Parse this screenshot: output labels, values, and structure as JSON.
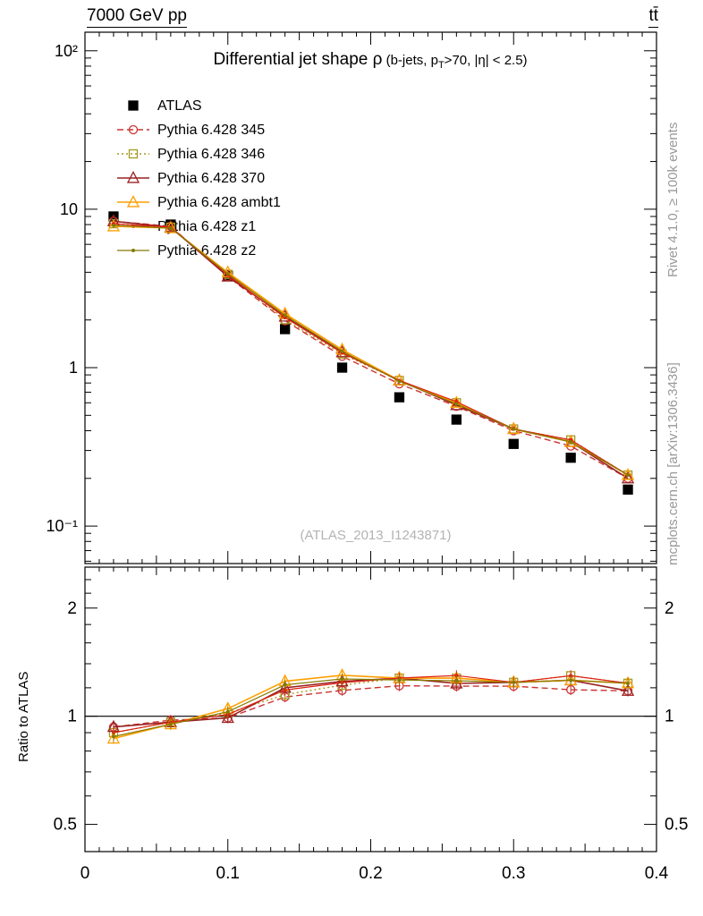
{
  "header": {
    "left": "7000 GeV pp",
    "right": "tt̄"
  },
  "title": {
    "main": "Differential jet shape ρ",
    "cuts_pre": " (b-jets, p",
    "cuts_sub": "T",
    "cuts_post": ">70, |η| < 2.5)"
  },
  "watermark": "(ATLAS_2013_I1243871)",
  "ratio_axis_label": "Ratio to ATLAS",
  "side_notes": {
    "top_right": "Rivet 4.1.0, ≥ 100k events",
    "bottom_right": "mcplots.cern.ch [arXiv:1306.3436]"
  },
  "chart_data": {
    "type": "line",
    "title": "Differential jet shape ρ (b-jets, pT>70, |η| < 2.5)",
    "xlabel": "",
    "ylabel": "",
    "ratio_ylabel": "Ratio to ATLAS",
    "x": [
      0.02,
      0.06,
      0.1,
      0.14,
      0.18,
      0.22,
      0.26,
      0.3,
      0.34,
      0.38
    ],
    "xlim": [
      0,
      0.4
    ],
    "main_ylim": [
      0.058,
      131
    ],
    "ratio_ylim": [
      0.42,
      2.6
    ],
    "x_ticks": [
      {
        "v": 0,
        "label": "0"
      },
      {
        "v": 0.1,
        "label": "0.1"
      },
      {
        "v": 0.2,
        "label": "0.2"
      },
      {
        "v": 0.3,
        "label": "0.3"
      },
      {
        "v": 0.4,
        "label": "0.4"
      }
    ],
    "main_y_ticks": [
      {
        "v": 100,
        "label": "10²"
      },
      {
        "v": 10,
        "label": "10"
      },
      {
        "v": 1,
        "label": "1"
      },
      {
        "v": 0.1,
        "label": "10⁻¹"
      }
    ],
    "ratio_y_ticks": [
      {
        "v": 2,
        "label": "2"
      },
      {
        "v": 1,
        "label": "1"
      },
      {
        "v": 0.5,
        "label": "0.5"
      }
    ],
    "ratio_minor_ticks": [
      0.6,
      0.7,
      0.8,
      0.9,
      1.2,
      1.4,
      1.6,
      1.8,
      2.2,
      2.4
    ],
    "legend": {
      "x_line0": 131,
      "x_line1": 167,
      "x_text": 176,
      "y0": 118,
      "dy": 27
    },
    "series": [
      {
        "id": "atlas",
        "name": "ATLAS",
        "color": "#000000",
        "line": "none",
        "lw": 0,
        "marker": "square",
        "msize": 5,
        "filled": true,
        "values": [
          9.0,
          8.0,
          3.8,
          1.75,
          1.0,
          0.65,
          0.47,
          0.33,
          0.27,
          0.17
        ]
      },
      {
        "id": "py345",
        "name": "Pythia 6.428 345",
        "color": "#cc3333",
        "line": "dash",
        "lw": 1.4,
        "marker": "circle",
        "msize": 4.5,
        "filled": false,
        "values": [
          8.4,
          7.8,
          3.76,
          1.98,
          1.18,
          0.79,
          0.57,
          0.4,
          0.32,
          0.2
        ]
      },
      {
        "id": "py346",
        "name": "Pythia 6.428 346",
        "color": "#a6991f",
        "line": "dot",
        "lw": 1.4,
        "marker": "square",
        "msize": 4.5,
        "filled": false,
        "values": [
          8.1,
          7.7,
          3.88,
          2.01,
          1.22,
          0.83,
          0.6,
          0.41,
          0.35,
          0.21
        ]
      },
      {
        "id": "py370",
        "name": "Pythia 6.428 370",
        "color": "#992222",
        "line": "solid",
        "lw": 1.6,
        "marker": "triangle",
        "msize": 5.5,
        "filled": false,
        "values": [
          8.4,
          7.7,
          3.76,
          2.1,
          1.25,
          0.83,
          0.58,
          0.41,
          0.34,
          0.2
        ]
      },
      {
        "id": "pyambt1",
        "name": "Pythia 6.428 ambt1",
        "color": "#ff9f00",
        "line": "solid",
        "lw": 1.6,
        "marker": "triangle",
        "msize": 5.5,
        "filled": false,
        "values": [
          7.8,
          7.6,
          3.99,
          2.19,
          1.3,
          0.83,
          0.6,
          0.41,
          0.34,
          0.21
        ]
      },
      {
        "id": "pyz1",
        "name": "Pythia 6.428 z1",
        "color": "#dd2211",
        "line": "solid",
        "lw": 1.2,
        "marker": "dot",
        "msize": 2,
        "filled": true,
        "values": [
          8.1,
          7.7,
          3.84,
          2.07,
          1.24,
          0.83,
          0.61,
          0.41,
          0.35,
          0.21
        ]
      },
      {
        "id": "pyz2",
        "name": "Pythia 6.428 z2",
        "color": "#857a00",
        "line": "solid",
        "lw": 1.2,
        "marker": "dot",
        "msize": 2,
        "filled": true,
        "values": [
          7.9,
          7.6,
          3.91,
          2.14,
          1.27,
          0.82,
          0.59,
          0.41,
          0.34,
          0.21
        ]
      }
    ]
  }
}
